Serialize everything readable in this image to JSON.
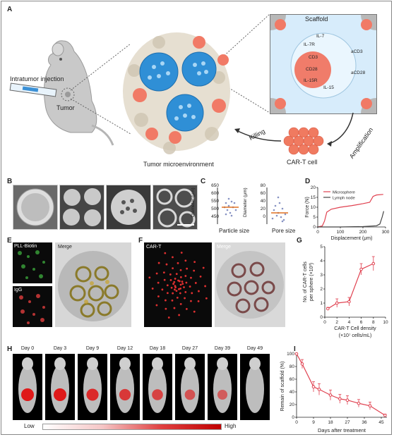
{
  "panels": {
    "A": "A",
    "B": "B",
    "C": "C",
    "D": "D",
    "E": "E",
    "F": "F",
    "G": "G",
    "H": "H",
    "I": "I"
  },
  "panelA": {
    "intratumor": "Intratumor injection",
    "tumor": "Tumor",
    "microenv": "Tumor microenvironment",
    "scaffold": "Scaffold",
    "cart": "CAR-T cell",
    "killing": "Killing",
    "amplification": "Amplification",
    "markers": [
      "IL-7",
      "IL-7R",
      "CD3",
      "CD28",
      "IL-15R",
      "IL-15",
      "aCD3",
      "aCD28"
    ]
  },
  "panelC": {
    "left": {
      "xlabel": "Particle size",
      "ylabel": "Diameter (μm)",
      "ticks": [
        "650",
        "600",
        "550",
        "500",
        "450"
      ]
    },
    "right": {
      "xlabel": "Pore size",
      "ylabel": "Diameter (μm)",
      "ticks": [
        "80",
        "60",
        "40",
        "20",
        "0"
      ]
    }
  },
  "panelE": {
    "pll": "PLL-Biotin",
    "igg": "IgG",
    "merge": "Merge"
  },
  "panelF": {
    "cart": "CAR-T",
    "merge": "Merge"
  },
  "panelH": {
    "days": [
      "Day 0",
      "Day 3",
      "Day 9",
      "Day 12",
      "Day 18",
      "Day 27",
      "Day 39",
      "Day 49"
    ],
    "low": "Low",
    "high": "High"
  },
  "colors": {
    "red": "#e0404f",
    "green": "#3aa33a",
    "blue": "#2f8fd6",
    "cell": "#f07060"
  },
  "chart_data": [
    {
      "id": "D",
      "type": "line",
      "xlabel": "Displacement (μm)",
      "ylabel": "Force (N)",
      "xlim": [
        0,
        300
      ],
      "ylim": [
        0,
        20
      ],
      "xticks": [
        0,
        100,
        200,
        300
      ],
      "yticks": [
        0,
        5,
        10,
        15,
        20
      ],
      "series": [
        {
          "name": "Microsphere",
          "color": "#e0404f",
          "x": [
            0,
            20,
            30,
            40,
            60,
            100,
            150,
            200,
            230,
            245,
            260,
            290
          ],
          "y": [
            0,
            0.5,
            3,
            7.5,
            9,
            10,
            10.8,
            11.8,
            12.5,
            15.5,
            16.2,
            16.5
          ]
        },
        {
          "name": "Lymph node",
          "color": "#444444",
          "x": [
            0,
            100,
            200,
            260,
            275,
            285,
            292
          ],
          "y": [
            0,
            0,
            0.2,
            0.6,
            1.5,
            5,
            8
          ]
        }
      ]
    },
    {
      "id": "G",
      "type": "line",
      "xlabel": "CAR-T Cell density",
      "xlabel2": "(×10⁷ cells/mL)",
      "ylabel": "No. of CAR-T cells per sphere (×10³)",
      "xlim": [
        0,
        10
      ],
      "ylim": [
        0,
        5
      ],
      "xticks": [
        0,
        2,
        4,
        6,
        8,
        10
      ],
      "yticks": [
        0,
        1,
        2,
        3,
        4,
        5
      ],
      "series": [
        {
          "name": "",
          "color": "#e0404f",
          "x": [
            0.5,
            2,
            4,
            6,
            8
          ],
          "y": [
            0.6,
            1.0,
            1.1,
            3.4,
            3.8
          ],
          "err": [
            0.1,
            0.3,
            0.3,
            0.4,
            0.5
          ]
        }
      ]
    },
    {
      "id": "I",
      "type": "line",
      "xlabel": "Days after treatment",
      "ylabel": "Remain of scaffold (%)",
      "xlim": [
        0,
        48
      ],
      "ylim": [
        0,
        100
      ],
      "xticks": [
        0,
        9,
        18,
        27,
        36,
        45
      ],
      "yticks": [
        0,
        20,
        40,
        60,
        80,
        100
      ],
      "series": [
        {
          "name": "",
          "color": "#e0404f",
          "x": [
            0,
            3,
            9,
            12,
            18,
            23,
            27,
            33,
            39,
            47
          ],
          "y": [
            100,
            84,
            48,
            44,
            35,
            29,
            27,
            22,
            18,
            3
          ],
          "err": [
            0,
            7,
            8,
            9,
            8,
            7,
            7,
            6,
            6,
            2
          ]
        }
      ]
    }
  ]
}
